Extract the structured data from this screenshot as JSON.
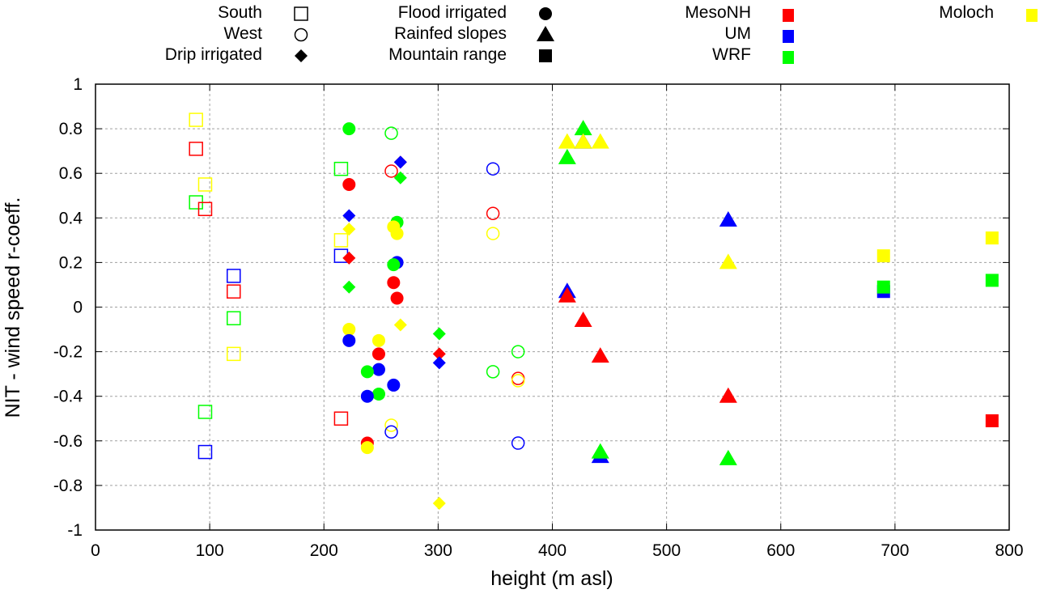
{
  "chart_data": {
    "type": "scatter",
    "title": "",
    "xlabel": "height (m asl)",
    "ylabel": "NIT - wind speed r-coeff.",
    "xlim": [
      0,
      800
    ],
    "ylim": [
      -1,
      1
    ],
    "xticks": [
      "0",
      "100",
      "200",
      "300",
      "400",
      "500",
      "600",
      "700",
      "800"
    ],
    "yticks": [
      "1",
      "0.8",
      "0.6",
      "0.4",
      "0.2",
      "0",
      "-0.2",
      "-0.4",
      "-0.6",
      "-0.8",
      "-1"
    ],
    "grid": true,
    "legend_location": "top",
    "shape_legend": [
      {
        "label": "South",
        "shape": "open-square"
      },
      {
        "label": "West",
        "shape": "open-circle"
      },
      {
        "label": "Drip irrigated",
        "shape": "diamond"
      },
      {
        "label": "Flood irrigated",
        "shape": "circle"
      },
      {
        "label": "Rainfed slopes",
        "shape": "triangle"
      },
      {
        "label": "Mountain range",
        "shape": "square"
      }
    ],
    "color_legend": [
      {
        "label": "MesoNH",
        "color": "#ff0000"
      },
      {
        "label": "UM",
        "color": "#0000ff"
      },
      {
        "label": "WRF",
        "color": "#00ff00"
      },
      {
        "label": "Moloch",
        "color": "#ffff00"
      }
    ],
    "series": [
      {
        "name": "South",
        "shape": "open-square",
        "points": [
          {
            "model": "Moloch",
            "x": 88,
            "y": 0.84
          },
          {
            "model": "MesoNH",
            "x": 88,
            "y": 0.71
          },
          {
            "model": "Moloch",
            "x": 96,
            "y": 0.55
          },
          {
            "model": "WRF",
            "x": 88,
            "y": 0.47
          },
          {
            "model": "MesoNH",
            "x": 96,
            "y": 0.44
          },
          {
            "model": "UM",
            "x": 121,
            "y": 0.14
          },
          {
            "model": "MesoNH",
            "x": 121,
            "y": 0.07
          },
          {
            "model": "WRF",
            "x": 121,
            "y": -0.05
          },
          {
            "model": "Moloch",
            "x": 121,
            "y": -0.21
          },
          {
            "model": "WRF",
            "x": 96,
            "y": -0.47
          },
          {
            "model": "UM",
            "x": 96,
            "y": -0.65
          },
          {
            "model": "WRF",
            "x": 215,
            "y": 0.62
          },
          {
            "model": "Moloch",
            "x": 215,
            "y": 0.3
          },
          {
            "model": "UM",
            "x": 215,
            "y": 0.23
          },
          {
            "model": "MesoNH",
            "x": 215,
            "y": -0.5
          }
        ]
      },
      {
        "name": "West",
        "shape": "open-circle",
        "points": [
          {
            "model": "WRF",
            "x": 259,
            "y": 0.78
          },
          {
            "model": "MesoNH",
            "x": 259,
            "y": 0.61
          },
          {
            "model": "Moloch",
            "x": 259,
            "y": -0.53
          },
          {
            "model": "UM",
            "x": 259,
            "y": -0.56
          },
          {
            "model": "UM",
            "x": 348,
            "y": 0.62
          },
          {
            "model": "MesoNH",
            "x": 348,
            "y": 0.42
          },
          {
            "model": "Moloch",
            "x": 348,
            "y": 0.33
          },
          {
            "model": "WRF",
            "x": 348,
            "y": -0.29
          },
          {
            "model": "WRF",
            "x": 370,
            "y": -0.2
          },
          {
            "model": "MesoNH",
            "x": 370,
            "y": -0.32
          },
          {
            "model": "Moloch",
            "x": 370,
            "y": -0.33
          },
          {
            "model": "UM",
            "x": 370,
            "y": -0.61
          }
        ]
      },
      {
        "name": "Drip irrigated",
        "shape": "diamond",
        "points": [
          {
            "model": "UM",
            "x": 222,
            "y": 0.41
          },
          {
            "model": "Moloch",
            "x": 222,
            "y": 0.35
          },
          {
            "model": "MesoNH",
            "x": 222,
            "y": 0.22
          },
          {
            "model": "WRF",
            "x": 222,
            "y": 0.09
          },
          {
            "model": "MesoNH",
            "x": 267,
            "y": 0.65
          },
          {
            "model": "UM",
            "x": 267,
            "y": 0.65
          },
          {
            "model": "WRF",
            "x": 267,
            "y": 0.58
          },
          {
            "model": "Moloch",
            "x": 267,
            "y": -0.08
          },
          {
            "model": "WRF",
            "x": 301,
            "y": -0.12
          },
          {
            "model": "MesoNH",
            "x": 301,
            "y": -0.21
          },
          {
            "model": "UM",
            "x": 301,
            "y": -0.25
          },
          {
            "model": "Moloch",
            "x": 301,
            "y": -0.88
          }
        ]
      },
      {
        "name": "Flood irrigated",
        "shape": "circle",
        "points": [
          {
            "model": "WRF",
            "x": 222,
            "y": 0.8
          },
          {
            "model": "MesoNH",
            "x": 222,
            "y": 0.55
          },
          {
            "model": "Moloch",
            "x": 222,
            "y": -0.1
          },
          {
            "model": "UM",
            "x": 222,
            "y": -0.15
          },
          {
            "model": "WRF",
            "x": 264,
            "y": 0.38
          },
          {
            "model": "Moloch",
            "x": 261,
            "y": 0.36
          },
          {
            "model": "Moloch",
            "x": 264,
            "y": 0.33
          },
          {
            "model": "UM",
            "x": 264,
            "y": 0.2
          },
          {
            "model": "WRF",
            "x": 261,
            "y": 0.19
          },
          {
            "model": "MesoNH",
            "x": 261,
            "y": 0.11
          },
          {
            "model": "MesoNH",
            "x": 264,
            "y": 0.04
          },
          {
            "model": "Moloch",
            "x": 248,
            "y": -0.15
          },
          {
            "model": "MesoNH",
            "x": 248,
            "y": -0.21
          },
          {
            "model": "UM",
            "x": 248,
            "y": -0.28
          },
          {
            "model": "WRF",
            "x": 238,
            "y": -0.29
          },
          {
            "model": "UM",
            "x": 261,
            "y": -0.35
          },
          {
            "model": "WRF",
            "x": 248,
            "y": -0.39
          },
          {
            "model": "UM",
            "x": 238,
            "y": -0.4
          },
          {
            "model": "MesoNH",
            "x": 238,
            "y": -0.61
          },
          {
            "model": "Moloch",
            "x": 238,
            "y": -0.63
          }
        ]
      },
      {
        "name": "Rainfed slopes",
        "shape": "triangle",
        "points": [
          {
            "model": "WRF",
            "x": 427,
            "y": 0.8
          },
          {
            "model": "Moloch",
            "x": 413,
            "y": 0.74
          },
          {
            "model": "UM",
            "x": 427,
            "y": 0.74
          },
          {
            "model": "Moloch",
            "x": 427,
            "y": 0.74
          },
          {
            "model": "Moloch",
            "x": 442,
            "y": 0.74
          },
          {
            "model": "WRF",
            "x": 413,
            "y": 0.67
          },
          {
            "model": "UM",
            "x": 413,
            "y": 0.07
          },
          {
            "model": "MesoNH",
            "x": 413,
            "y": 0.05
          },
          {
            "model": "MesoNH",
            "x": 427,
            "y": -0.06
          },
          {
            "model": "MesoNH",
            "x": 442,
            "y": -0.22
          },
          {
            "model": "UM",
            "x": 442,
            "y": -0.67
          },
          {
            "model": "WRF",
            "x": 442,
            "y": -0.65
          },
          {
            "model": "UM",
            "x": 554,
            "y": 0.39
          },
          {
            "model": "Moloch",
            "x": 554,
            "y": 0.2
          },
          {
            "model": "MesoNH",
            "x": 554,
            "y": -0.4
          },
          {
            "model": "WRF",
            "x": 554,
            "y": -0.68
          }
        ]
      },
      {
        "name": "Mountain range",
        "shape": "square",
        "points": [
          {
            "model": "Moloch",
            "x": 690,
            "y": 0.23
          },
          {
            "model": "UM",
            "x": 690,
            "y": 0.07
          },
          {
            "model": "WRF",
            "x": 690,
            "y": 0.09
          },
          {
            "model": "Moloch",
            "x": 785,
            "y": 0.31
          },
          {
            "model": "WRF",
            "x": 785,
            "y": 0.12
          },
          {
            "model": "MesoNH",
            "x": 785,
            "y": -0.51
          }
        ]
      }
    ]
  }
}
